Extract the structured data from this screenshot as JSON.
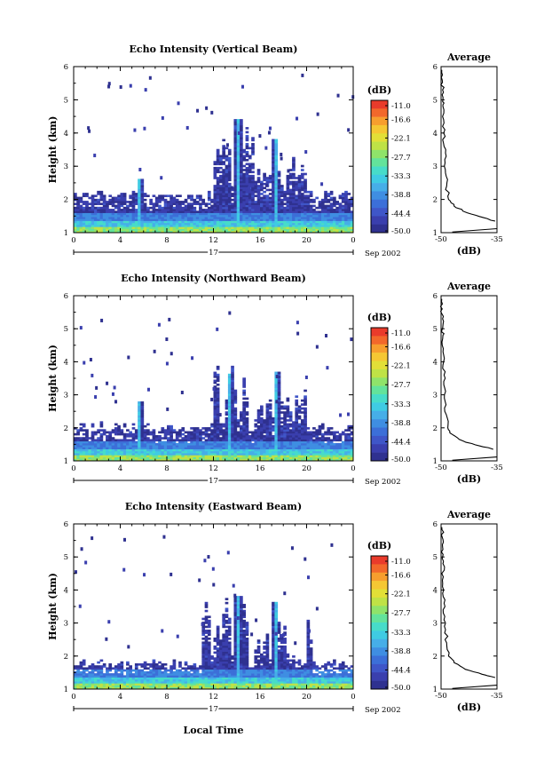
{
  "figure": {
    "xlabel": "Local Time",
    "day_label": "17",
    "date_label": "Sep 2002"
  },
  "chart_data": [
    {
      "type": "heatmap",
      "title": "Echo Intensity (Vertical Beam)",
      "xlabel": "Local Time",
      "ylabel": "Height (km)",
      "x_ticks": [
        "0",
        "4",
        "8",
        "12",
        "16",
        "20",
        "0"
      ],
      "y_ticks": [
        "1",
        "2",
        "3",
        "4",
        "5",
        "6"
      ],
      "xlim": [
        0,
        24
      ],
      "ylim": [
        1,
        6
      ],
      "colorbar": {
        "label": "(dB)",
        "ticks": [
          "-11.0",
          "-16.6",
          "-22.1",
          "-27.7",
          "-33.3",
          "-38.8",
          "-44.4",
          "-50.0"
        ],
        "range": [
          -50.0,
          -11.0
        ]
      },
      "features": {
        "base_top_km": 2.1,
        "spikes": [
          {
            "t": 5.6,
            "top": 2.6
          },
          {
            "t": 14.0,
            "top": 4.4
          },
          {
            "t": 17.2,
            "top": 3.8
          }
        ],
        "convection_cells": [
          {
            "t0": 12.0,
            "t1": 15.5,
            "top": 4.2
          },
          {
            "t0": 15.5,
            "t1": 20.5,
            "top": 3.3
          }
        ]
      },
      "profile": {
        "title": "Average",
        "xlabel": "(dB)",
        "x_ticks": [
          "-50",
          "-35"
        ],
        "xlim": [
          -50,
          -35
        ],
        "y_ticks": [
          "1",
          "2",
          "3",
          "4",
          "5",
          "6"
        ],
        "x": [
          -35.5,
          -38.5,
          -43.0,
          -46.5,
          -48.0,
          -48.5,
          -48.8,
          -49.0,
          -49.2,
          -49.3,
          -49.3,
          -49.5,
          -49.5,
          -49.6,
          -49.7,
          -49.8
        ],
        "y": [
          1.35,
          1.45,
          1.6,
          1.8,
          2.0,
          2.4,
          2.8,
          3.2,
          3.6,
          4.0,
          4.4,
          4.8,
          5.0,
          5.3,
          5.6,
          5.9
        ]
      }
    },
    {
      "type": "heatmap",
      "title": "Echo Intensity (Northward Beam)",
      "xlabel": "Local Time",
      "ylabel": "Height (km)",
      "x_ticks": [
        "0",
        "4",
        "8",
        "12",
        "16",
        "20",
        "0"
      ],
      "y_ticks": [
        "1",
        "2",
        "3",
        "4",
        "5",
        "6"
      ],
      "xlim": [
        0,
        24
      ],
      "ylim": [
        1,
        6
      ],
      "colorbar": {
        "label": "(dB)",
        "ticks": [
          "-11.0",
          "-16.6",
          "-22.1",
          "-27.7",
          "-33.3",
          "-38.8",
          "-44.4",
          "-50.0"
        ],
        "range": [
          -50.0,
          -11.0
        ]
      },
      "features": {
        "base_top_km": 2.0,
        "spikes": [
          {
            "t": 5.6,
            "top": 2.8
          },
          {
            "t": 13.3,
            "top": 3.6
          },
          {
            "t": 17.3,
            "top": 3.7
          }
        ],
        "convection_cells": [
          {
            "t0": 12.0,
            "t1": 15.0,
            "top": 4.0
          },
          {
            "t0": 15.5,
            "t1": 20.0,
            "top": 3.2
          }
        ]
      },
      "profile": {
        "title": "Average",
        "xlabel": "(dB)",
        "x_ticks": [
          "-50",
          "-35"
        ],
        "xlim": [
          -50,
          -35
        ],
        "y_ticks": [
          "1",
          "2",
          "3",
          "4",
          "5",
          "6"
        ],
        "x": [
          -36.0,
          -39.5,
          -44.0,
          -47.0,
          -48.2,
          -48.6,
          -48.9,
          -49.0,
          -49.2,
          -49.3,
          -49.4,
          -49.5,
          -49.6,
          -49.6,
          -49.7,
          -49.8
        ],
        "y": [
          1.35,
          1.45,
          1.6,
          1.8,
          2.0,
          2.4,
          2.8,
          3.2,
          3.6,
          4.0,
          4.4,
          4.8,
          5.0,
          5.3,
          5.6,
          5.9
        ]
      }
    },
    {
      "type": "heatmap",
      "title": "Echo Intensity (Eastward Beam)",
      "xlabel": "Local Time",
      "ylabel": "Height (km)",
      "x_ticks": [
        "0",
        "4",
        "8",
        "12",
        "16",
        "20",
        "0"
      ],
      "y_ticks": [
        "1",
        "2",
        "3",
        "4",
        "5",
        "6"
      ],
      "xlim": [
        0,
        24
      ],
      "ylim": [
        1,
        6
      ],
      "colorbar": {
        "label": "(dB)",
        "ticks": [
          "-11.0",
          "-16.6",
          "-22.1",
          "-27.7",
          "-33.3",
          "-38.8",
          "-44.4",
          "-50.0"
        ],
        "range": [
          -50.0,
          -11.0
        ]
      },
      "features": {
        "base_top_km": 1.75,
        "spikes": [
          {
            "t": 14.0,
            "top": 3.8
          },
          {
            "t": 17.2,
            "top": 3.6
          }
        ],
        "convection_cells": [
          {
            "t0": 11.0,
            "t1": 15.0,
            "top": 3.8
          },
          {
            "t0": 15.5,
            "t1": 20.5,
            "top": 3.3
          }
        ]
      },
      "profile": {
        "title": "Average",
        "xlabel": "(dB)",
        "x_ticks": [
          "-50",
          "-35"
        ],
        "xlim": [
          -50,
          -35
        ],
        "y_ticks": [
          "1",
          "2",
          "3",
          "4",
          "5",
          "6"
        ],
        "x": [
          -35.5,
          -39.0,
          -43.5,
          -46.5,
          -48.0,
          -48.5,
          -48.8,
          -49.0,
          -49.2,
          -49.3,
          -49.4,
          -49.5,
          -49.6,
          -49.6,
          -49.7,
          -49.8
        ],
        "y": [
          1.35,
          1.45,
          1.6,
          1.8,
          2.0,
          2.4,
          2.8,
          3.2,
          3.6,
          4.0,
          4.4,
          4.8,
          5.0,
          5.3,
          5.6,
          5.9
        ]
      }
    }
  ]
}
